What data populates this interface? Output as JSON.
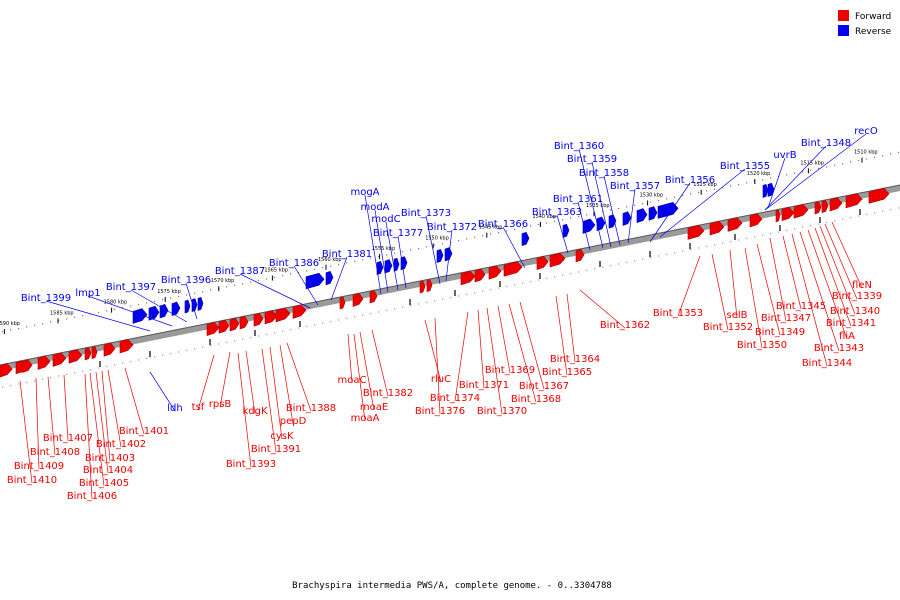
{
  "caption": "Brachyspira intermedia PWS/A, complete genome. - 0..3304788",
  "legend": [
    {
      "label": "Forward",
      "color": "#ee0000"
    },
    {
      "label": "Reverse",
      "color": "#0000ee"
    }
  ],
  "colors": {
    "forward": "#ee0000",
    "reverse": "#0000ee",
    "backbone": "#808080"
  },
  "ticks": [
    "1510 kbp",
    "1515 kbp",
    "1520 kbp",
    "1525 kbp",
    "1530 kbp",
    "1535 kbp",
    "1540 kbp",
    "1545 kbp",
    "1550 kbp",
    "1555 kbp",
    "1560 kbp",
    "1565 kbp",
    "1570 kbp",
    "1575 kbp",
    "1580 kbp",
    "1585 kbp",
    "1590 kbp"
  ],
  "reverse_labels": [
    "recO",
    "Bint_1348",
    "uvrB",
    "Bint_1355",
    "Bint_1356",
    "Bint_1357",
    "Bint_1358",
    "Bint_1359",
    "Bint_1360",
    "Bint_1361",
    "Bint_1363",
    "Bint_1366",
    "Bint_1372",
    "Bint_1373",
    "Bint_1377",
    "modC",
    "modA",
    "mogA",
    "Bint_1381",
    "Bint_1386",
    "Bint_1387",
    "Bint_1396",
    "Bint_1397",
    "lmp1",
    "Bint_1399",
    "ldh"
  ],
  "forward_labels": [
    "fleN",
    "Bint_1339",
    "Bint_1340",
    "Bint_1341",
    "fliA",
    "Bint_1343",
    "Bint_1344",
    "Bint_1345",
    "Bint_1347",
    "Bint_1349",
    "Bint_1350",
    "selB",
    "Bint_1352",
    "Bint_1353",
    "Bint_1362",
    "Bint_1364",
    "Bint_1365",
    "Bint_1367",
    "Bint_1368",
    "Bint_1369",
    "Bint_1370",
    "Bint_1371",
    "Bint_1374",
    "Bint_1376",
    "rluC",
    "Bint_1382",
    "moaE",
    "moaA",
    "moaC",
    "Bint_1388",
    "pepD",
    "cysK",
    "Bint_1391",
    "kdgK",
    "Bint_1393",
    "rpsB",
    "tsf",
    "Bint_1401",
    "Bint_1402",
    "Bint_1403",
    "Bint_1404",
    "Bint_1405",
    "Bint_1406",
    "Bint_1407",
    "Bint_1408",
    "Bint_1409",
    "Bint_1410"
  ]
}
